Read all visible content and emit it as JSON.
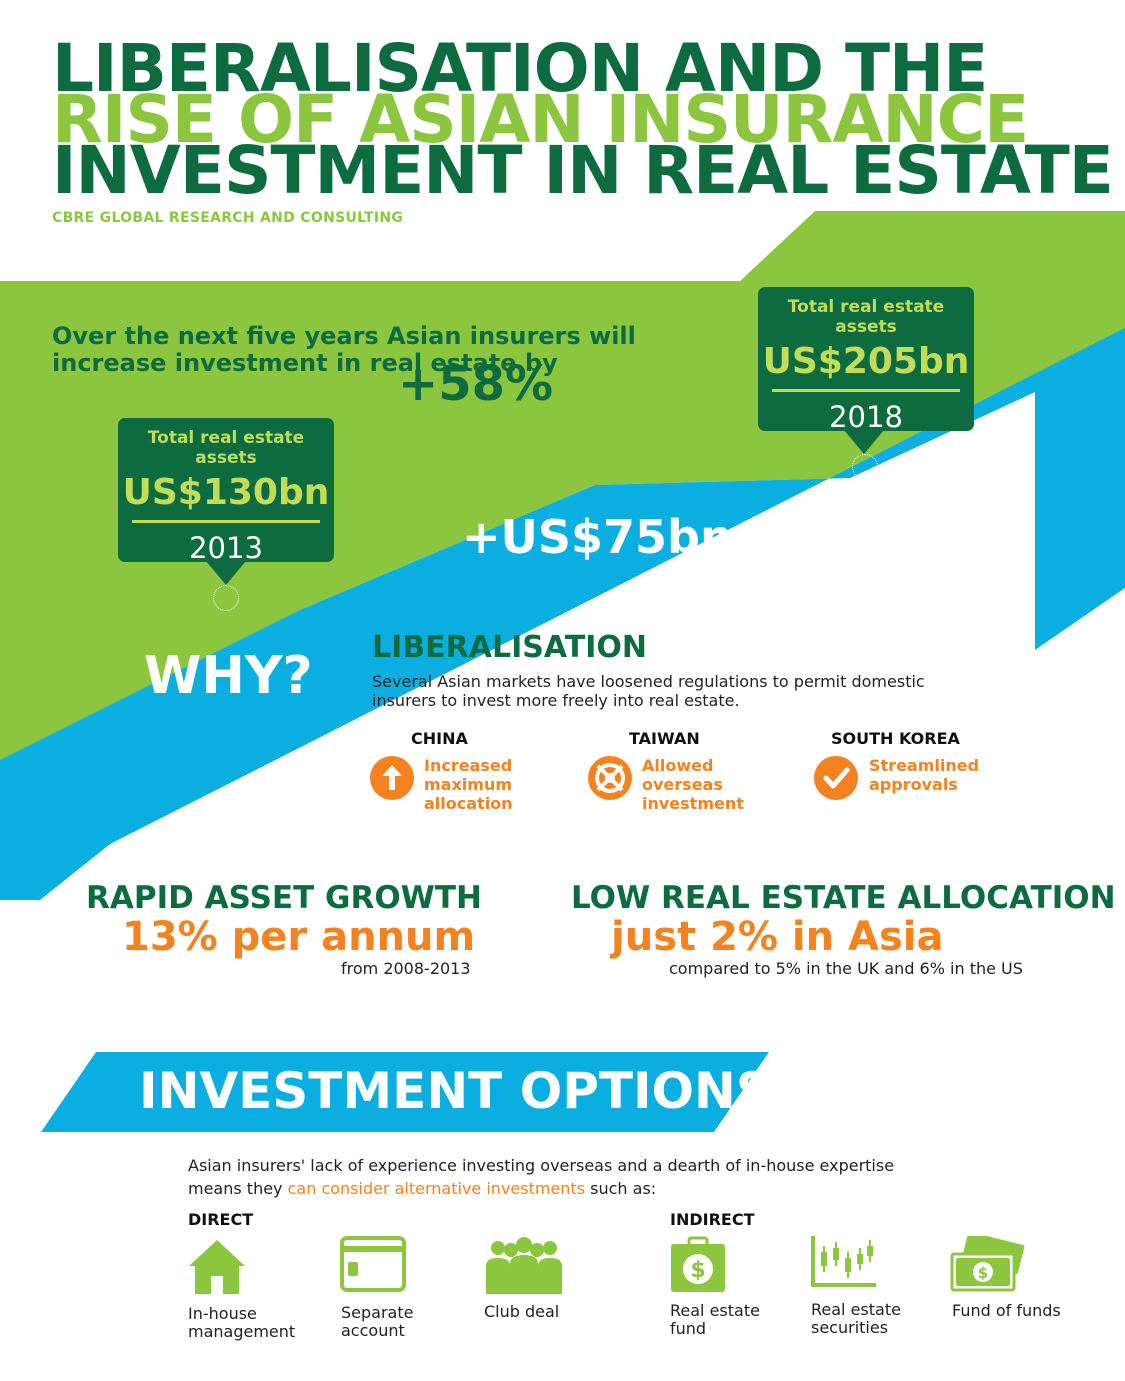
{
  "title": {
    "line1": "LIBERALISATION AND THE",
    "line2": "RISE OF ASIAN INSURANCE",
    "line3": "INVESTMENT IN REAL ESTATE",
    "source": "CBRE GLOBAL RESEARCH AND CONSULTING"
  },
  "colors": {
    "dark_green": "#0c6b3f",
    "light_green": "#8cc63f",
    "lime_band": "#c3dc58",
    "blue": "#0aaee0",
    "orange": "#f58220",
    "white": "#ffffff"
  },
  "forecast": {
    "headline": "Over the next five years Asian insurers will increase investment in real estate by",
    "growth": "+58%",
    "increase": "+US$75bn",
    "start": {
      "label": "Total real estate assets",
      "value": "US$130bn",
      "year": "2013"
    },
    "end": {
      "label": "Total real estate assets",
      "value": "US$205bn",
      "year": "2018"
    }
  },
  "why": {
    "label": "WHY?",
    "liberalisation": {
      "heading": "LIBERALISATION",
      "text": "Several Asian markets have loosened regulations to permit domestic insurers to invest more freely into real estate.",
      "markets": [
        {
          "country": "CHINA",
          "reform": "Increased maximum allocation",
          "icon": "arrow-up-icon"
        },
        {
          "country": "TAIWAN",
          "reform": "Allowed overseas investment",
          "icon": "lifebuoy-icon"
        },
        {
          "country": "SOUTH KOREA",
          "reform": "Streamlined approvals",
          "icon": "checkmark-icon"
        }
      ]
    },
    "growth": {
      "heading": "RAPID ASSET GROWTH",
      "value": "13% per annum",
      "note": "from 2008-2013"
    },
    "allocation": {
      "heading": "LOW REAL ESTATE ALLOCATION",
      "value": "just 2% in Asia",
      "note": "compared to 5% in the UK and 6% in the US"
    }
  },
  "options": {
    "heading": "INVESTMENT OPTIONS",
    "intro_start": "Asian insurers' lack of experience investing overseas and a dearth of in-house expertise means they",
    "intro_highlight": "can consider alternative investments",
    "intro_end": "such as:",
    "direct": {
      "heading": "DIRECT",
      "items": [
        {
          "line1": "In-house",
          "line2": "management",
          "icon": "house-icon"
        },
        {
          "line1": "Separate",
          "line2": "account",
          "icon": "card-icon"
        },
        {
          "line1": "Club deal",
          "line2": "",
          "icon": "people-icon"
        }
      ]
    },
    "indirect": {
      "heading": "INDIRECT",
      "items": [
        {
          "line1": "Real estate",
          "line2": "fund",
          "icon": "money-bag-icon"
        },
        {
          "line1": "Real estate",
          "line2": "securities",
          "icon": "candlestick-chart-icon"
        },
        {
          "line1": "Fund of funds",
          "line2": "",
          "icon": "banknotes-icon"
        }
      ]
    }
  }
}
